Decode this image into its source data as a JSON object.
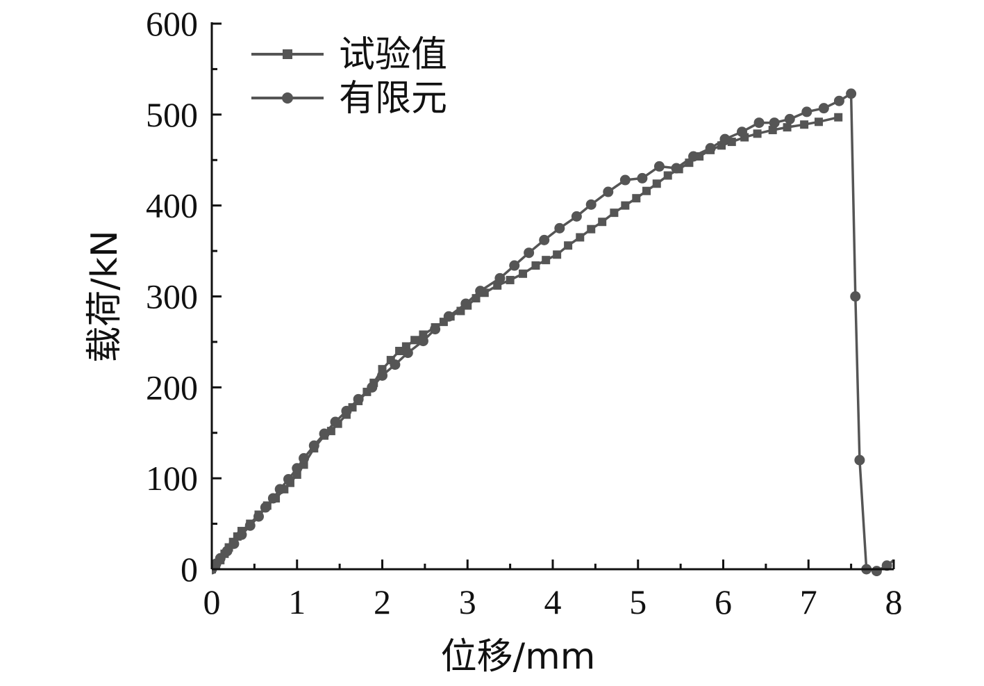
{
  "chart_data": {
    "type": "line",
    "title": "",
    "xlabel": "位移/mm",
    "ylabel": "载荷/kN",
    "xlim": [
      0,
      8
    ],
    "ylim": [
      0,
      600
    ],
    "x_ticks": [
      0,
      1,
      2,
      3,
      4,
      5,
      6,
      7,
      8
    ],
    "y_ticks": [
      0,
      100,
      200,
      300,
      400,
      500,
      600
    ],
    "grid": false,
    "legend_position": "top-left",
    "series": [
      {
        "name": "试验值",
        "marker": "square",
        "color": "#555555",
        "points": [
          [
            0,
            0
          ],
          [
            0.05,
            5
          ],
          [
            0.1,
            10
          ],
          [
            0.15,
            17
          ],
          [
            0.2,
            24
          ],
          [
            0.25,
            30
          ],
          [
            0.3,
            36
          ],
          [
            0.35,
            42
          ],
          [
            0.45,
            50
          ],
          [
            0.55,
            60
          ],
          [
            0.65,
            70
          ],
          [
            0.75,
            78
          ],
          [
            0.85,
            88
          ],
          [
            0.92,
            95
          ],
          [
            1.0,
            104
          ],
          [
            1.08,
            115
          ],
          [
            1.2,
            133
          ],
          [
            1.32,
            147
          ],
          [
            1.4,
            152
          ],
          [
            1.48,
            160
          ],
          [
            1.58,
            170
          ],
          [
            1.65,
            178
          ],
          [
            1.72,
            185
          ],
          [
            1.82,
            195
          ],
          [
            1.9,
            205
          ],
          [
            2.0,
            220
          ],
          [
            2.1,
            230
          ],
          [
            2.2,
            240
          ],
          [
            2.28,
            245
          ],
          [
            2.38,
            252
          ],
          [
            2.48,
            258
          ],
          [
            2.62,
            266
          ],
          [
            2.72,
            272
          ],
          [
            2.8,
            278
          ],
          [
            2.92,
            284
          ],
          [
            3.0,
            290
          ],
          [
            3.1,
            298
          ],
          [
            3.2,
            304
          ],
          [
            3.35,
            312
          ],
          [
            3.5,
            318
          ],
          [
            3.65,
            325
          ],
          [
            3.8,
            334
          ],
          [
            3.92,
            340
          ],
          [
            4.05,
            346
          ],
          [
            4.18,
            356
          ],
          [
            4.32,
            365
          ],
          [
            4.45,
            374
          ],
          [
            4.58,
            382
          ],
          [
            4.72,
            392
          ],
          [
            4.85,
            400
          ],
          [
            4.98,
            408
          ],
          [
            5.1,
            416
          ],
          [
            5.22,
            424
          ],
          [
            5.35,
            433
          ],
          [
            5.48,
            440
          ],
          [
            5.6,
            447
          ],
          [
            5.72,
            454
          ],
          [
            5.85,
            461
          ],
          [
            5.98,
            466
          ],
          [
            6.1,
            470
          ],
          [
            6.25,
            475
          ],
          [
            6.4,
            479
          ],
          [
            6.58,
            483
          ],
          [
            6.75,
            486
          ],
          [
            6.95,
            489
          ],
          [
            7.12,
            492
          ],
          [
            7.35,
            497
          ]
        ]
      },
      {
        "name": "有限元",
        "marker": "circle",
        "color": "#555555",
        "points": [
          [
            0,
            0
          ],
          [
            0.05,
            6
          ],
          [
            0.1,
            12
          ],
          [
            0.18,
            20
          ],
          [
            0.26,
            28
          ],
          [
            0.35,
            38
          ],
          [
            0.45,
            48
          ],
          [
            0.55,
            58
          ],
          [
            0.63,
            68
          ],
          [
            0.72,
            78
          ],
          [
            0.8,
            88
          ],
          [
            0.9,
            99
          ],
          [
            1.0,
            111
          ],
          [
            1.08,
            122
          ],
          [
            1.2,
            136
          ],
          [
            1.32,
            149
          ],
          [
            1.45,
            162
          ],
          [
            1.58,
            174
          ],
          [
            1.72,
            187
          ],
          [
            1.88,
            200
          ],
          [
            2.0,
            213
          ],
          [
            2.15,
            225
          ],
          [
            2.3,
            238
          ],
          [
            2.48,
            251
          ],
          [
            2.62,
            264
          ],
          [
            2.78,
            278
          ],
          [
            2.98,
            292
          ],
          [
            3.15,
            306
          ],
          [
            3.38,
            320
          ],
          [
            3.55,
            334
          ],
          [
            3.72,
            348
          ],
          [
            3.9,
            362
          ],
          [
            4.08,
            375
          ],
          [
            4.28,
            388
          ],
          [
            4.45,
            401
          ],
          [
            4.65,
            415
          ],
          [
            4.85,
            428
          ],
          [
            5.05,
            430
          ],
          [
            5.25,
            443
          ],
          [
            5.45,
            441
          ],
          [
            5.65,
            454
          ],
          [
            5.85,
            463
          ],
          [
            6.02,
            473
          ],
          [
            6.22,
            481
          ],
          [
            6.42,
            491
          ],
          [
            6.6,
            491
          ],
          [
            6.78,
            495
          ],
          [
            6.98,
            503
          ],
          [
            7.18,
            507
          ],
          [
            7.36,
            515
          ],
          [
            7.5,
            523
          ],
          [
            7.55,
            300
          ],
          [
            7.6,
            120
          ],
          [
            7.68,
            0
          ],
          [
            7.8,
            -2
          ],
          [
            7.92,
            4
          ],
          [
            8.0,
            10
          ]
        ]
      }
    ]
  }
}
